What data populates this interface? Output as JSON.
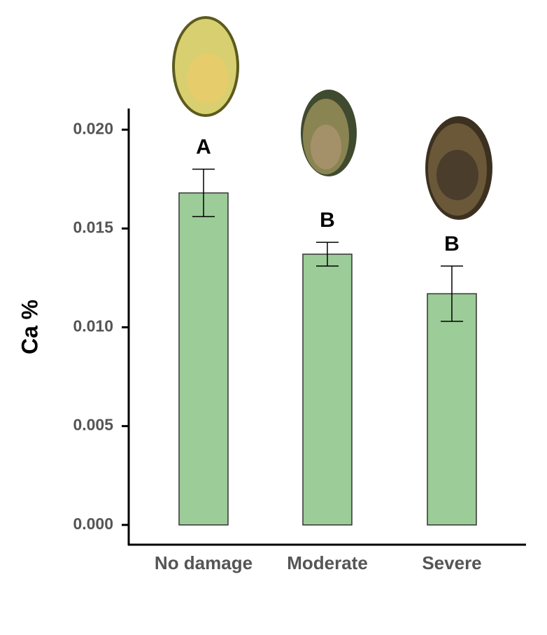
{
  "chart_data": {
    "type": "bar",
    "y_label": "Ca %",
    "categories": [
      "No damage",
      "Moderate",
      "Severe"
    ],
    "values": [
      0.0168,
      0.0137,
      0.0117
    ],
    "errors": [
      0.0012,
      0.0006,
      0.0014
    ],
    "letters": [
      "A",
      "B",
      "B"
    ],
    "color": "#9ccc98",
    "ylim": [
      -0.001,
      0.021
    ],
    "yticks": [
      {
        "value": 0,
        "label": "0.000"
      },
      0.005,
      {
        "value": 0.01,
        "label": "0.010"
      },
      0.015,
      {
        "value": 0.02,
        "label": "0.020"
      }
    ]
  }
}
